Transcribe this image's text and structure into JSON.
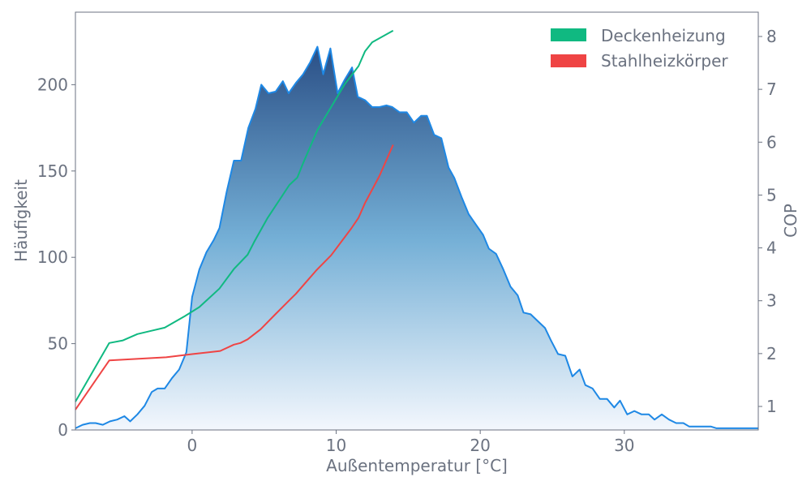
{
  "chart_data": {
    "type": "area+line",
    "xlabel": "Außentemperatur [°C]",
    "ylabel": "Häufigkeit",
    "ylabel_right": "COP",
    "xlim": [
      -8.1,
      39.3
    ],
    "ylim": [
      0,
      242
    ],
    "ylim_right": [
      0.555,
      8.46
    ],
    "xticks": [
      0,
      10,
      20,
      30
    ],
    "yticks": [
      0,
      50,
      100,
      150,
      200
    ],
    "yticks_right": [
      1,
      2,
      3,
      4,
      5,
      6,
      7,
      8
    ],
    "grid": false,
    "legend_position": "top-right",
    "histogram": {
      "color": "#1e88e5",
      "gradient_top": "#2a4f86",
      "gradient_bottom": "#f3f7fd",
      "x": [
        -8.1,
        -7.6,
        -7.1,
        -6.7,
        -6.2,
        -5.7,
        -5.2,
        -4.7,
        -4.3,
        -3.8,
        -3.3,
        -2.8,
        -2.4,
        -1.9,
        -1.4,
        -0.9,
        -0.4,
        0.0,
        0.5,
        1.0,
        1.5,
        1.9,
        2.4,
        2.9,
        3.4,
        3.9,
        4.4,
        4.8,
        5.3,
        5.8,
        6.3,
        6.7,
        7.2,
        7.7,
        8.2,
        8.7,
        9.1,
        9.6,
        10.1,
        10.6,
        11.1,
        11.5,
        12.0,
        12.5,
        13.0,
        13.5,
        13.9,
        14.4,
        14.9,
        15.4,
        15.9,
        16.3,
        16.8,
        17.3,
        17.8,
        18.2,
        18.7,
        19.2,
        19.7,
        20.2,
        20.6,
        21.1,
        21.6,
        22.1,
        22.6,
        23.0,
        23.5,
        24.0,
        24.5,
        24.9,
        25.4,
        25.9,
        26.4,
        26.9,
        27.3,
        27.8,
        28.3,
        28.8,
        29.3,
        29.7,
        30.2,
        30.7,
        31.2,
        31.7,
        32.1,
        32.6,
        33.1,
        33.6,
        34.1,
        34.5,
        35.0,
        35.5,
        36.0,
        36.4,
        36.9,
        37.4,
        37.9,
        38.4,
        38.8,
        39.3
      ],
      "values": [
        1,
        3,
        4,
        4,
        3,
        5,
        6,
        8,
        5,
        9,
        14,
        22,
        24,
        24,
        30,
        35,
        45,
        77,
        93,
        103,
        110,
        117,
        138,
        156,
        156,
        175,
        186,
        200,
        195,
        196,
        202,
        195,
        201,
        206,
        213,
        222,
        206,
        221,
        195,
        203,
        210,
        193,
        191,
        187,
        187,
        188,
        187,
        184,
        184,
        178,
        182,
        182,
        171,
        169,
        152,
        146,
        135,
        125,
        119,
        113,
        105,
        102,
        93,
        83,
        78,
        68,
        67,
        63,
        59,
        52,
        44,
        43,
        31,
        35,
        26,
        24,
        18,
        18,
        13,
        17,
        9,
        11,
        9,
        9,
        6,
        9,
        6,
        4,
        4,
        2,
        2,
        2,
        2,
        1,
        1,
        1,
        1,
        1,
        1,
        1
      ]
    },
    "series": [
      {
        "name": "Deckenheizung",
        "axis": "right",
        "color": "#10b981",
        "x": [
          -8.1,
          -5.75,
          -4.8,
          -3.8,
          -2.85,
          -1.9,
          -0.5,
          0.5,
          1.9,
          2.9,
          3.85,
          4.3,
          5.25,
          6.75,
          7.3,
          7.7,
          8.7,
          10.6,
          11.55,
          12.0,
          12.5,
          13.95
        ],
        "values": [
          1.09,
          2.2,
          2.25,
          2.37,
          2.43,
          2.49,
          2.71,
          2.88,
          3.23,
          3.6,
          3.87,
          4.11,
          4.57,
          5.19,
          5.33,
          5.6,
          6.23,
          7.1,
          7.44,
          7.72,
          7.89,
          8.11
        ]
      },
      {
        "name": "Stahlheizkörper",
        "axis": "right",
        "color": "#ef4444",
        "x": [
          -8.1,
          -5.75,
          -1.8,
          0.0,
          1.95,
          2.9,
          3.35,
          3.85,
          4.75,
          5.8,
          6.75,
          7.2,
          8.6,
          9.65,
          11.05,
          11.55,
          12.0,
          13.0,
          13.95
        ],
        "values": [
          0.94,
          1.87,
          1.93,
          1.99,
          2.05,
          2.17,
          2.2,
          2.27,
          2.46,
          2.75,
          3.01,
          3.13,
          3.57,
          3.86,
          4.37,
          4.57,
          4.85,
          5.36,
          5.95
        ]
      }
    ]
  }
}
